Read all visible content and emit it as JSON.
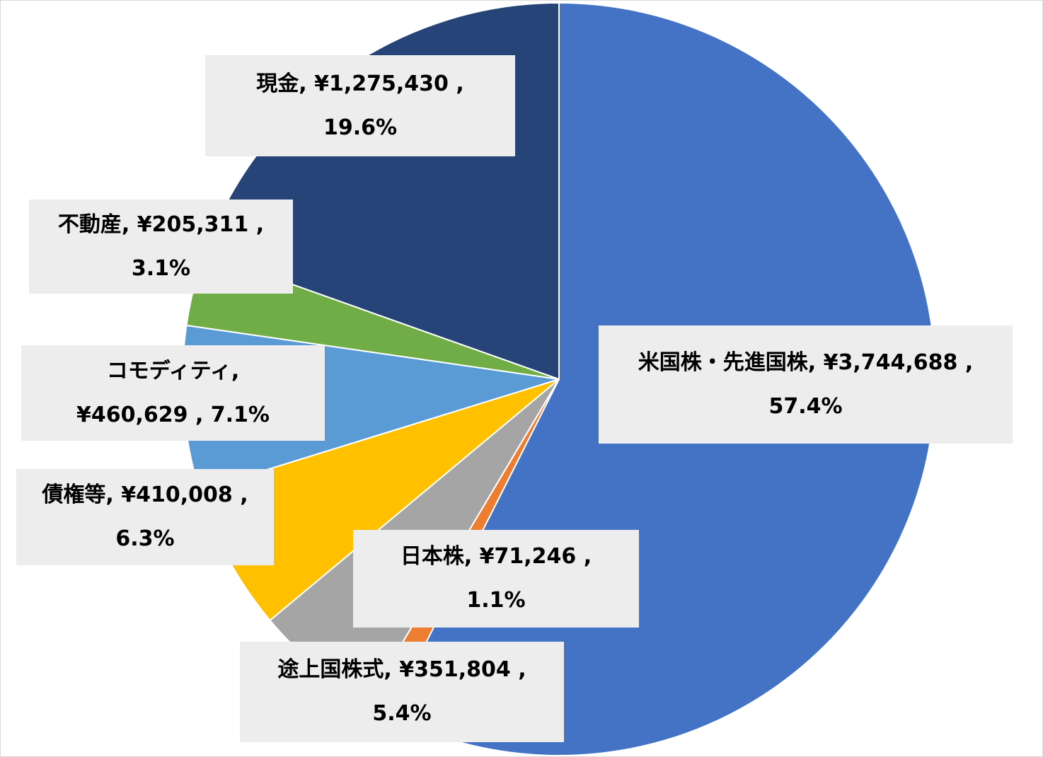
{
  "chart_data": {
    "type": "pie",
    "title": "",
    "start_angle_deg": 90,
    "direction": "clockwise",
    "slices": [
      {
        "name": "米国株・先進国株",
        "value": 3744688,
        "percent": 57.4,
        "color": "#4472C4",
        "label_line1": "米国株・先進国株, ¥3,744,688 ,",
        "label_line2": "57.4%"
      },
      {
        "name": "日本株",
        "value": 71246,
        "percent": 1.1,
        "color": "#ED7D31",
        "label_line1": "日本株, ¥71,246 ,",
        "label_line2": "1.1%"
      },
      {
        "name": "途上国株式",
        "value": 351804,
        "percent": 5.4,
        "color": "#A5A5A5",
        "label_line1": "途上国株式, ¥351,804 ,",
        "label_line2": "5.4%"
      },
      {
        "name": "債権等",
        "value": 410008,
        "percent": 6.3,
        "color": "#FFC000",
        "label_line1": "債権等, ¥410,008 ,",
        "label_line2": "6.3%"
      },
      {
        "name": "コモディティ",
        "value": 460629,
        "percent": 7.1,
        "color": "#5B9BD5",
        "label_line1": "コモディティ,",
        "label_line2": "¥460,629 , 7.1%"
      },
      {
        "name": "不動産",
        "value": 205311,
        "percent": 3.1,
        "color": "#70AD47",
        "label_line1": "不動産, ¥205,311 ,",
        "label_line2": "3.1%"
      },
      {
        "name": "現金",
        "value": 1275430,
        "percent": 19.6,
        "color": "#264478",
        "label_line1": "現金, ¥1,275,430 ,",
        "label_line2": "19.6%"
      }
    ]
  }
}
